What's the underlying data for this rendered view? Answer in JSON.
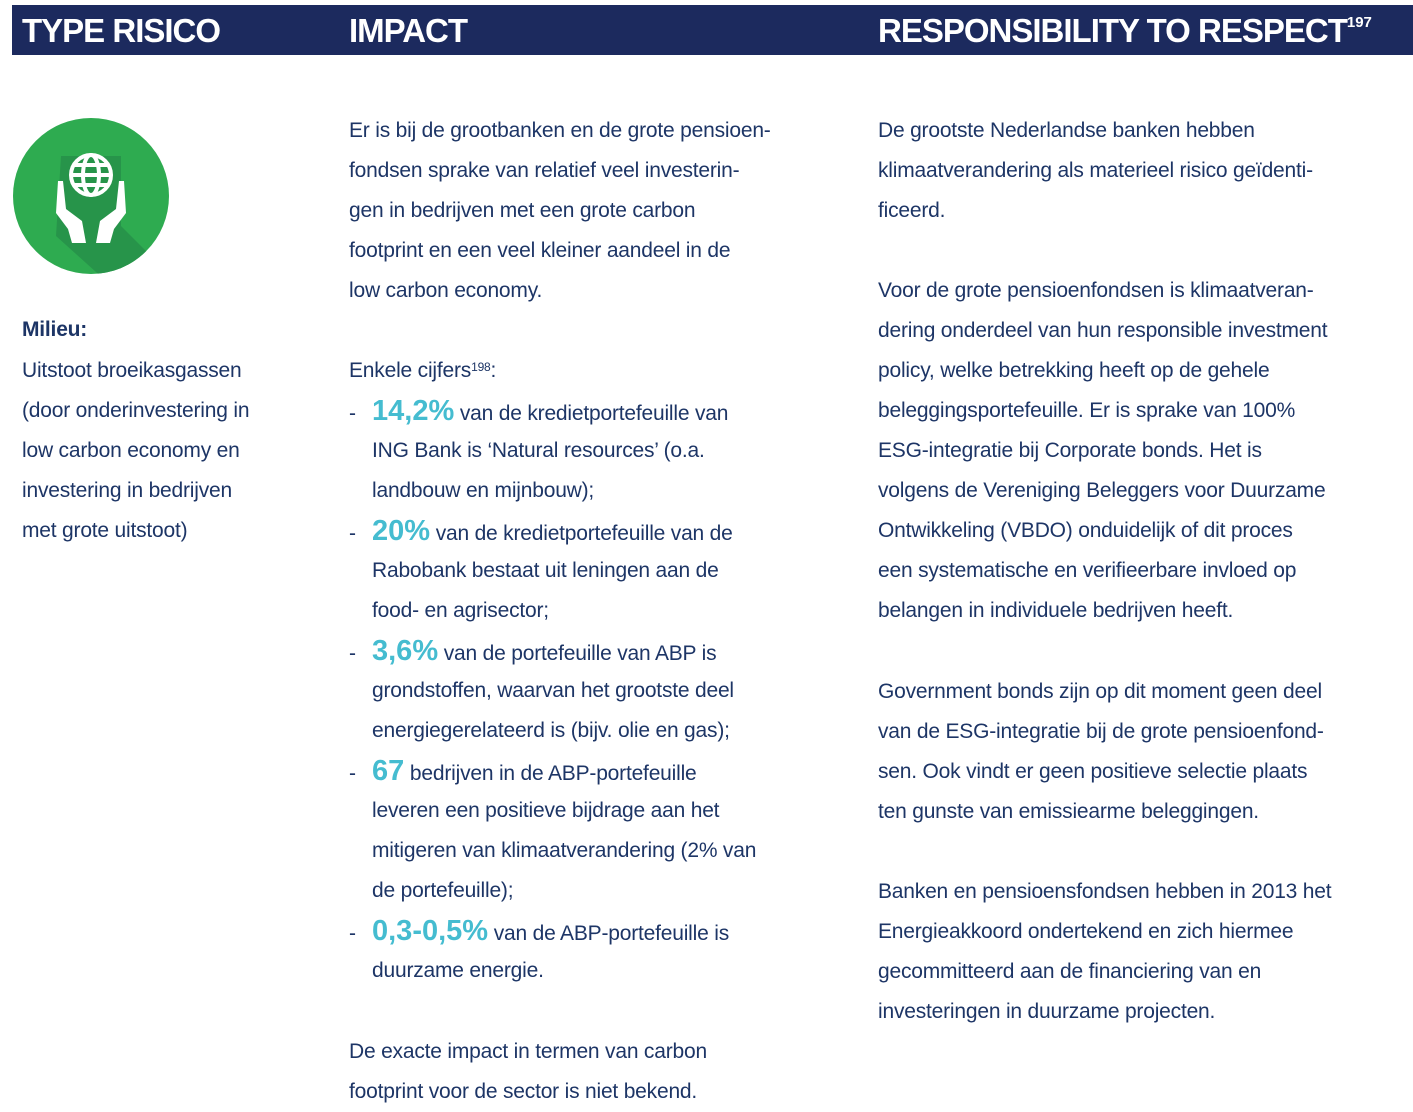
{
  "header": {
    "columns": [
      "TYPE RISICO",
      "IMPACT",
      "RESPONSIBILITY TO RESPECT"
    ],
    "footnote_ref": "197"
  },
  "risk": {
    "label": "Milieu:",
    "lines": [
      "Uitstoot broeikasgassen",
      "(door onderinvestering in",
      "low carbon economy en",
      "investering in bedrijven",
      "met grote uitstoot)"
    ]
  },
  "impact": {
    "intro": [
      "Er is bij de grootbanken en de grote pensioen-",
      "fondsen sprake van relatief veel investerin-",
      "gen in bedrijven met een grote carbon",
      "footprint en een veel kleiner aandeel in de",
      "low carbon economy."
    ],
    "figures_intro": {
      "text": "Enkele cijfers",
      "footnote_ref": "198",
      "suffix": ":"
    },
    "bullet": "-",
    "figures": [
      {
        "value": "14,2%",
        "lines": [
          "van de kredietportefeuille van",
          "ING Bank is ‘Natural resources’ (o.a.",
          "landbouw en mijnbouw);"
        ]
      },
      {
        "value": "20%",
        "lines": [
          "van de kredietportefeuille van de",
          "Rabobank bestaat uit leningen aan de",
          "food- en agrisector;"
        ]
      },
      {
        "value": "3,6%",
        "lines": [
          "van de portefeuille van ABP is",
          "grondstoffen, waarvan het grootste deel",
          "energiegerelateerd is (bijv. olie en gas);"
        ]
      },
      {
        "value": "67",
        "lines": [
          "bedrijven in de ABP-portefeuille",
          "leveren een positieve bijdrage aan het",
          "mitigeren van klimaatverandering (2% van",
          "de portefeuille);"
        ]
      },
      {
        "value": "0,3-0,5%",
        "lines": [
          "van de ABP-portefeuille is",
          "duurzame energie."
        ]
      }
    ],
    "closing": [
      "De exacte impact in termen van carbon",
      "footprint voor de sector is niet bekend."
    ]
  },
  "responsibility": {
    "paragraphs": [
      [
        "De grootste Nederlandse banken hebben",
        "klimaatverandering als materieel risico geïdenti-",
        "ficeerd."
      ],
      [
        "Voor de grote pensioenfondsen is klimaatveran-",
        "dering onderdeel van hun responsible investment",
        "policy, welke betrekking heeft op de gehele",
        "beleggingsportefeuille. Er is sprake van 100%",
        "ESG-integratie bij Corporate bonds. Het is",
        "volgens de Vereniging Beleggers voor Duurzame",
        "Ontwikkeling (VBDO) onduidelijk of dit proces",
        "een systematische en verifieerbare invloed op",
        "belangen in individuele bedrijven heeft."
      ],
      [
        "Government bonds zijn op dit moment geen deel",
        "van de ESG-integratie bij de grote pensioenfond-",
        "sen. Ook vindt er geen positieve selectie plaats",
        "ten gunste van emissiearme beleggingen."
      ],
      [
        "Banken en pensioensfondsen hebben in 2013 het",
        "Energieakkoord ondertekend en zich hiermee",
        "gecommitteerd aan de financiering van en",
        "investeringen in duurzame projecten."
      ]
    ]
  }
}
